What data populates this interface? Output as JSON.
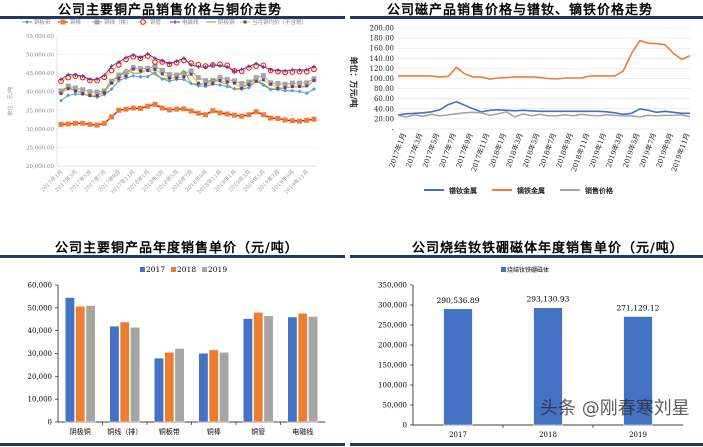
{
  "chart_data": [
    {
      "type": "line",
      "title": "公司主要铜产品销售价格与铜价走势",
      "ylabel": "单位：元/吨",
      "ylim": [
        20000,
        55000
      ],
      "yticks": [
        "20,000.00",
        "25,000.00",
        "30,000.00",
        "35,000.00",
        "40,000.00",
        "45,000.00",
        "50,000.00",
        "55,000.00"
      ],
      "x_labels": [
        "2017年1月",
        "2017年3月",
        "2017年5月",
        "2017年7月",
        "2017年9月",
        "2017年11月",
        "2018年1月",
        "2018年3月",
        "2018年5月",
        "2018年7月",
        "2018年9月",
        "2018年11月",
        "2019年1月",
        "2019年3月",
        "2019年5月",
        "2019年7月",
        "2019年9月",
        "2019年11月"
      ],
      "legend_position": "top",
      "series": [
        {
          "name": "铜板带",
          "color": "#5b9bd5",
          "marker": "diamond",
          "values": [
            37600,
            39000,
            39400,
            39300,
            38900,
            38500,
            39200,
            40700,
            43000,
            43700,
            44300,
            44000,
            44100,
            45100,
            43400,
            42900,
            43300,
            43300,
            42200,
            41600,
            41400,
            42000,
            41800,
            41400,
            40800,
            40700,
            41100,
            42900,
            41800,
            40600,
            40600,
            40300,
            40300,
            40100,
            39600,
            40700
          ]
        },
        {
          "name": "铜棒",
          "color": "#ed7d31",
          "marker": "square",
          "values": [
            31200,
            31300,
            31500,
            31500,
            31200,
            31000,
            31500,
            33200,
            35000,
            35300,
            35600,
            35500,
            36100,
            36600,
            35600,
            35100,
            35300,
            35400,
            34800,
            34200,
            33800,
            34900,
            34300,
            34000,
            33700,
            33400,
            33800,
            34600,
            33800,
            32900,
            32800,
            32400,
            32200,
            32100,
            32300,
            32600
          ]
        },
        {
          "name": "铜线（排）",
          "color": "#a5a5a5",
          "marker": "square",
          "values": [
            40200,
            41500,
            41000,
            40500,
            40000,
            39900,
            40200,
            42800,
            44500,
            45000,
            46500,
            46200,
            46300,
            46800,
            45700,
            44600,
            44500,
            44900,
            45600,
            43800,
            43000,
            43000,
            43800,
            43300,
            42900,
            42200,
            42600,
            43800,
            44300,
            42400,
            42200,
            42000,
            42300,
            42300,
            42400,
            43500
          ]
        },
        {
          "name": "铜管",
          "color": "#ffc000",
          "marker": "circle",
          "values": [
            42800,
            43800,
            44200,
            43800,
            43000,
            43000,
            43900,
            45700,
            47200,
            48700,
            49400,
            49000,
            49600,
            48000,
            48000,
            47400,
            47800,
            48400,
            47700,
            47300,
            46900,
            47200,
            47400,
            47100,
            45600,
            45500,
            46400,
            46900,
            47100,
            45700,
            45400,
            45200,
            45300,
            45400,
            45400,
            46000
          ]
        },
        {
          "name": "电磁线",
          "color": "#7030a0",
          "marker": "plus",
          "values": [
            43300,
            44600,
            44500,
            44200,
            43300,
            43400,
            44400,
            46900,
            48000,
            49200,
            49900,
            49200,
            50200,
            49000,
            48300,
            47600,
            48200,
            49000,
            47200,
            46700,
            46600,
            47200,
            47000,
            46700,
            45500,
            46000,
            46800,
            47600,
            46700,
            45900,
            45700,
            45600,
            45900,
            45800,
            45900,
            46800
          ]
        },
        {
          "name": "阴极铜",
          "color": "#70ad47",
          "marker": "none",
          "values": [
            40000,
            41200,
            40300,
            39700,
            38700,
            38800,
            40200,
            43200,
            43800,
            46100,
            45000,
            45000,
            46000,
            44500,
            43600,
            43400,
            44000,
            45800,
            42200,
            42000,
            42000,
            43400,
            42600,
            42000,
            40500,
            41000,
            42500,
            43200,
            42100,
            40700,
            40800,
            41000,
            41300,
            41300,
            41300,
            43000
          ]
        },
        {
          "name": "当月铜均价（不含税）",
          "color": "#ffc000",
          "marker": "dash",
          "values": [
            39500,
            40800,
            40200,
            39500,
            39000,
            39000,
            39700,
            42300,
            43600,
            44200,
            46100,
            45600,
            45700,
            46000,
            44800,
            43700,
            43700,
            44000,
            44700,
            42300,
            42000,
            42300,
            43000,
            42600,
            42300,
            41000,
            41900,
            42800,
            43200,
            42000,
            41000,
            41100,
            41400,
            41400,
            41600,
            43000
          ]
        }
      ]
    },
    {
      "type": "line",
      "title": "公司磁产品销售价格与镨钕、镝铁价格走势",
      "ylabel": "单位：万元/吨",
      "ylim": [
        0,
        200
      ],
      "yticks": [
        "-",
        "20.00",
        "40.00",
        "60.00",
        "80.00",
        "100.00",
        "120.00",
        "140.00",
        "160.00",
        "180.00",
        "200.00"
      ],
      "x_labels": [
        "2017年1月",
        "2017年3月",
        "2017年5月",
        "2017年7月",
        "2017年9月",
        "2017年11月",
        "2018年1月",
        "2018年3月",
        "2018年5月",
        "2018年7月",
        "2018年9月",
        "2018年11月",
        "2019年1月",
        "2019年3月",
        "2019年5月",
        "2019年7月",
        "2019年9月",
        "2019年11月"
      ],
      "legend_position": "bottom",
      "series": [
        {
          "name": "镨钕金属",
          "color": "#4472c4",
          "values": [
            28,
            30,
            31,
            32,
            34,
            38,
            48,
            54,
            47,
            40,
            34,
            37,
            38,
            37,
            36,
            37,
            36,
            35,
            35,
            35,
            35,
            35,
            35,
            35,
            35,
            34,
            32,
            29,
            31,
            40,
            37,
            33,
            35,
            33,
            31,
            31
          ]
        },
        {
          "name": "镝铁金属",
          "color": "#ed7d31",
          "values": [
            105,
            105,
            105,
            105,
            105,
            103,
            104,
            122,
            109,
            103,
            103,
            99,
            101,
            102,
            103,
            103,
            103,
            102,
            100,
            99,
            101,
            101,
            101,
            105,
            105,
            105,
            105,
            115,
            150,
            175,
            170,
            169,
            167,
            150,
            138,
            145
          ]
        },
        {
          "name": "销售价格",
          "color": "#a5a5a5",
          "values": [
            27,
            24,
            28,
            25,
            29,
            26,
            28,
            30,
            32,
            33,
            32,
            27,
            30,
            34,
            24,
            30,
            26,
            29,
            26,
            26,
            28,
            26,
            29,
            27,
            26,
            28,
            27,
            26,
            26,
            24,
            27,
            26,
            27,
            27,
            28,
            24
          ]
        }
      ]
    },
    {
      "type": "bar",
      "title": "公司主要铜产品年度销售单价（元/吨）",
      "categories": [
        "阴极铜",
        "铜线（排）",
        "铜板带",
        "铜棒",
        "铜管",
        "电磁线"
      ],
      "ylim": [
        0,
        60000
      ],
      "yticks": [
        "0",
        "10,000",
        "20,000",
        "30,000",
        "40,000",
        "50,000",
        "60,000"
      ],
      "legend_position": "top",
      "series": [
        {
          "name": "2017",
          "color": "#4472c4",
          "values": [
            54500,
            42000,
            28000,
            30100,
            45300,
            46000
          ]
        },
        {
          "name": "2018",
          "color": "#ed7d31",
          "values": [
            50700,
            43800,
            30500,
            31600,
            48000,
            47600
          ]
        },
        {
          "name": "2019",
          "color": "#a5a5a5",
          "values": [
            51000,
            41500,
            32200,
            30500,
            46500,
            46200
          ]
        }
      ]
    },
    {
      "type": "bar",
      "title": "公司烧结钕铁硼磁体年度销售单价（元/吨）",
      "categories": [
        "2017",
        "2018",
        "2019"
      ],
      "ylim": [
        0,
        350000
      ],
      "yticks": [
        "0",
        "50,000",
        "100,000",
        "150,000",
        "200,000",
        "250,000",
        "300,000",
        "350,000"
      ],
      "legend_position": "top",
      "series": [
        {
          "name": "烧结钕铁硼磁体",
          "color": "#4472c4",
          "values": [
            290536.89,
            293130.93,
            271129.12
          ],
          "labels": [
            "290,536.89",
            "293,130.93",
            "271,129.12"
          ]
        }
      ]
    }
  ],
  "watermark": "头条 @刚春寒刘星"
}
